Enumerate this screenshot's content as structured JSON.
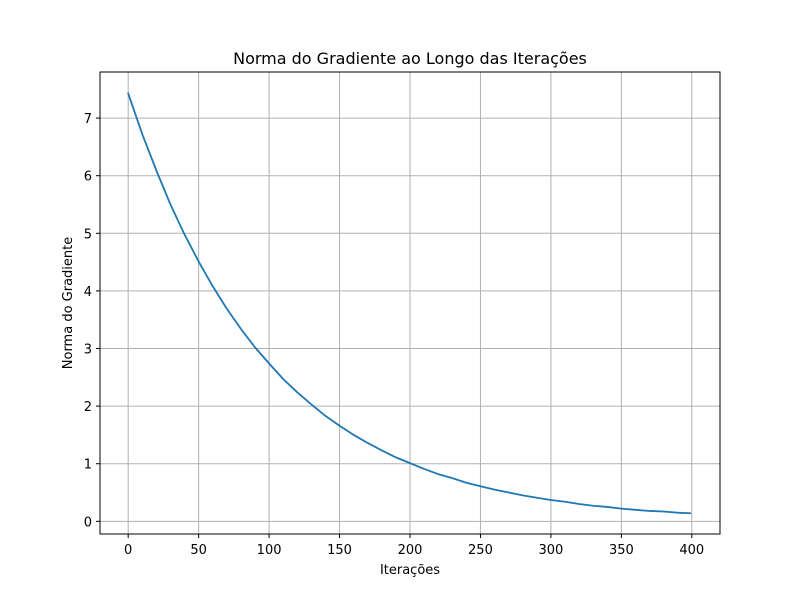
{
  "chart_data": {
    "type": "line",
    "title": "Norma do Gradiente ao Longo das Iterações",
    "xlabel": "Iterações",
    "ylabel": "Norma do Gradiente",
    "xlim": [
      -20,
      420
    ],
    "ylim": [
      -0.22,
      7.8
    ],
    "xticks": [
      0,
      50,
      100,
      150,
      200,
      250,
      300,
      350,
      400
    ],
    "yticks": [
      0,
      1,
      2,
      3,
      4,
      5,
      6,
      7
    ],
    "grid": true,
    "series": [
      {
        "color": "#1f77b4",
        "x": [
          0,
          10,
          20,
          30,
          40,
          50,
          60,
          70,
          80,
          90,
          100,
          110,
          120,
          130,
          140,
          150,
          160,
          170,
          180,
          190,
          200,
          210,
          220,
          230,
          240,
          250,
          260,
          270,
          280,
          290,
          300,
          310,
          320,
          330,
          340,
          350,
          360,
          370,
          380,
          390,
          399
        ],
        "y": [
          7.43,
          6.72,
          6.09,
          5.5,
          4.98,
          4.51,
          4.08,
          3.69,
          3.34,
          3.02,
          2.74,
          2.47,
          2.24,
          2.03,
          1.83,
          1.66,
          1.5,
          1.36,
          1.23,
          1.11,
          1.01,
          0.91,
          0.82,
          0.75,
          0.67,
          0.61,
          0.55,
          0.5,
          0.45,
          0.41,
          0.37,
          0.34,
          0.3,
          0.27,
          0.25,
          0.22,
          0.2,
          0.18,
          0.17,
          0.15,
          0.14
        ]
      }
    ]
  }
}
